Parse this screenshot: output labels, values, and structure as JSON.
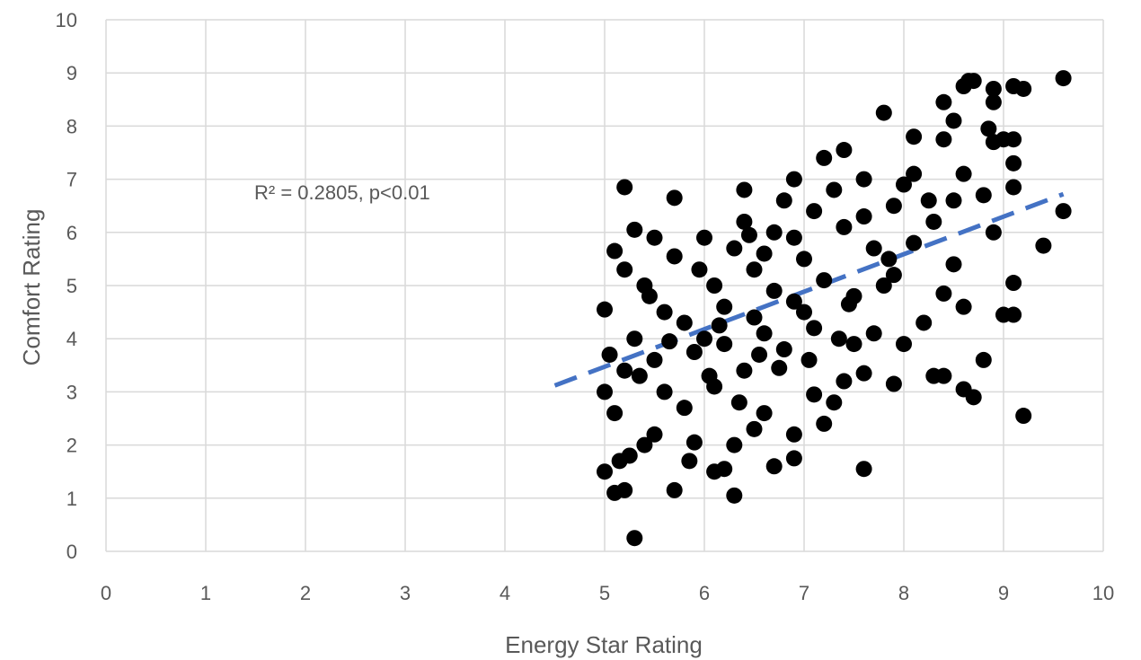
{
  "chart_data": {
    "type": "scatter",
    "xlabel": "Energy Star Rating",
    "ylabel": "Comfort Rating",
    "xlim": [
      0,
      10
    ],
    "ylim": [
      0,
      10
    ],
    "xticks": [
      "0",
      "1",
      "2",
      "3",
      "4",
      "5",
      "6",
      "7",
      "8",
      "9",
      "10"
    ],
    "yticks": [
      "0",
      "1",
      "2",
      "3",
      "4",
      "5",
      "6",
      "7",
      "8",
      "9",
      "10"
    ],
    "grid": true,
    "annotation": "R² = 0.2805, p<0.01",
    "colors": {
      "points": "#000000",
      "trendline": "#4472C4",
      "grid": "#d9d9d9",
      "text": "#595959"
    },
    "trendline": {
      "style": "dashed",
      "x": [
        4.5,
        9.6
      ],
      "y": [
        3.12,
        6.72
      ]
    },
    "points": [
      {
        "x": 5.3,
        "y": 0.25
      },
      {
        "x": 6.3,
        "y": 1.05
      },
      {
        "x": 5.1,
        "y": 1.1
      },
      {
        "x": 5.2,
        "y": 1.15
      },
      {
        "x": 5.7,
        "y": 1.15
      },
      {
        "x": 5.0,
        "y": 1.5
      },
      {
        "x": 6.1,
        "y": 1.5
      },
      {
        "x": 6.2,
        "y": 1.55
      },
      {
        "x": 6.7,
        "y": 1.6
      },
      {
        "x": 7.6,
        "y": 1.55
      },
      {
        "x": 5.15,
        "y": 1.7
      },
      {
        "x": 5.25,
        "y": 1.8
      },
      {
        "x": 5.85,
        "y": 1.7
      },
      {
        "x": 6.9,
        "y": 1.75
      },
      {
        "x": 5.4,
        "y": 2.0
      },
      {
        "x": 5.9,
        "y": 2.05
      },
      {
        "x": 6.3,
        "y": 2.0
      },
      {
        "x": 6.9,
        "y": 2.2
      },
      {
        "x": 5.5,
        "y": 2.2
      },
      {
        "x": 6.5,
        "y": 2.3
      },
      {
        "x": 7.2,
        "y": 2.4
      },
      {
        "x": 9.2,
        "y": 2.55
      },
      {
        "x": 5.1,
        "y": 2.6
      },
      {
        "x": 5.8,
        "y": 2.7
      },
      {
        "x": 6.6,
        "y": 2.6
      },
      {
        "x": 7.3,
        "y": 2.8
      },
      {
        "x": 8.7,
        "y": 2.9
      },
      {
        "x": 7.1,
        "y": 2.95
      },
      {
        "x": 5.0,
        "y": 3.0
      },
      {
        "x": 5.6,
        "y": 3.0
      },
      {
        "x": 6.1,
        "y": 3.1
      },
      {
        "x": 8.6,
        "y": 3.05
      },
      {
        "x": 7.9,
        "y": 3.15
      },
      {
        "x": 7.4,
        "y": 3.2
      },
      {
        "x": 8.3,
        "y": 3.3
      },
      {
        "x": 8.4,
        "y": 3.3
      },
      {
        "x": 7.6,
        "y": 3.35
      },
      {
        "x": 5.2,
        "y": 3.4
      },
      {
        "x": 6.4,
        "y": 3.4
      },
      {
        "x": 8.8,
        "y": 3.6
      },
      {
        "x": 5.5,
        "y": 3.6
      },
      {
        "x": 5.05,
        "y": 3.7
      },
      {
        "x": 5.9,
        "y": 3.75
      },
      {
        "x": 6.8,
        "y": 3.8
      },
      {
        "x": 7.5,
        "y": 3.9
      },
      {
        "x": 8.0,
        "y": 3.9
      },
      {
        "x": 5.3,
        "y": 4.0
      },
      {
        "x": 6.0,
        "y": 4.0
      },
      {
        "x": 6.6,
        "y": 4.1
      },
      {
        "x": 7.1,
        "y": 4.2
      },
      {
        "x": 7.7,
        "y": 4.1
      },
      {
        "x": 8.2,
        "y": 4.3
      },
      {
        "x": 9.0,
        "y": 4.45
      },
      {
        "x": 9.1,
        "y": 4.45
      },
      {
        "x": 5.0,
        "y": 4.55
      },
      {
        "x": 5.6,
        "y": 4.5
      },
      {
        "x": 6.2,
        "y": 4.6
      },
      {
        "x": 8.6,
        "y": 4.6
      },
      {
        "x": 6.9,
        "y": 4.7
      },
      {
        "x": 7.5,
        "y": 4.8
      },
      {
        "x": 8.4,
        "y": 4.85
      },
      {
        "x": 5.4,
        "y": 5.0
      },
      {
        "x": 6.1,
        "y": 5.0
      },
      {
        "x": 9.1,
        "y": 5.05
      },
      {
        "x": 7.2,
        "y": 5.1
      },
      {
        "x": 7.9,
        "y": 5.2
      },
      {
        "x": 5.2,
        "y": 5.3
      },
      {
        "x": 6.5,
        "y": 5.3
      },
      {
        "x": 8.5,
        "y": 5.4
      },
      {
        "x": 7.0,
        "y": 5.5
      },
      {
        "x": 5.7,
        "y": 5.55
      },
      {
        "x": 5.1,
        "y": 5.65
      },
      {
        "x": 6.3,
        "y": 5.7
      },
      {
        "x": 7.7,
        "y": 5.7
      },
      {
        "x": 9.4,
        "y": 5.75
      },
      {
        "x": 8.1,
        "y": 5.8
      },
      {
        "x": 5.5,
        "y": 5.9
      },
      {
        "x": 6.0,
        "y": 5.9
      },
      {
        "x": 6.7,
        "y": 6.0
      },
      {
        "x": 8.9,
        "y": 6.0
      },
      {
        "x": 5.3,
        "y": 6.05
      },
      {
        "x": 7.4,
        "y": 6.1
      },
      {
        "x": 8.3,
        "y": 6.2
      },
      {
        "x": 6.4,
        "y": 6.2
      },
      {
        "x": 9.6,
        "y": 6.4
      },
      {
        "x": 7.1,
        "y": 6.4
      },
      {
        "x": 7.9,
        "y": 6.5
      },
      {
        "x": 6.8,
        "y": 6.6
      },
      {
        "x": 8.5,
        "y": 6.6
      },
      {
        "x": 5.7,
        "y": 6.65
      },
      {
        "x": 8.8,
        "y": 6.7
      },
      {
        "x": 6.4,
        "y": 6.8
      },
      {
        "x": 7.3,
        "y": 6.8
      },
      {
        "x": 5.2,
        "y": 6.85
      },
      {
        "x": 9.1,
        "y": 6.85
      },
      {
        "x": 8.0,
        "y": 6.9
      },
      {
        "x": 6.9,
        "y": 7.0
      },
      {
        "x": 7.6,
        "y": 7.0
      },
      {
        "x": 8.6,
        "y": 7.1
      },
      {
        "x": 8.1,
        "y": 7.1
      },
      {
        "x": 9.1,
        "y": 7.3
      },
      {
        "x": 7.2,
        "y": 7.4
      },
      {
        "x": 7.4,
        "y": 7.55
      },
      {
        "x": 8.9,
        "y": 7.7
      },
      {
        "x": 8.4,
        "y": 7.75
      },
      {
        "x": 9.1,
        "y": 7.75
      },
      {
        "x": 8.1,
        "y": 7.8
      },
      {
        "x": 9.0,
        "y": 7.75
      },
      {
        "x": 8.85,
        "y": 7.95
      },
      {
        "x": 8.5,
        "y": 8.1
      },
      {
        "x": 7.8,
        "y": 8.25
      },
      {
        "x": 8.4,
        "y": 8.45
      },
      {
        "x": 8.9,
        "y": 8.45
      },
      {
        "x": 8.9,
        "y": 8.7
      },
      {
        "x": 8.6,
        "y": 8.75
      },
      {
        "x": 9.1,
        "y": 8.75
      },
      {
        "x": 9.2,
        "y": 8.7
      },
      {
        "x": 8.65,
        "y": 8.85
      },
      {
        "x": 8.7,
        "y": 8.85
      },
      {
        "x": 9.6,
        "y": 8.9
      },
      {
        "x": 6.5,
        "y": 4.4
      },
      {
        "x": 6.7,
        "y": 4.9
      },
      {
        "x": 7.0,
        "y": 4.5
      },
      {
        "x": 6.2,
        "y": 3.9
      },
      {
        "x": 5.8,
        "y": 4.3
      },
      {
        "x": 6.9,
        "y": 5.9
      },
      {
        "x": 7.6,
        "y": 6.3
      },
      {
        "x": 7.8,
        "y": 5.0
      },
      {
        "x": 6.05,
        "y": 3.3
      },
      {
        "x": 6.35,
        "y": 2.8
      },
      {
        "x": 5.45,
        "y": 4.8
      },
      {
        "x": 7.35,
        "y": 4.0
      },
      {
        "x": 6.6,
        "y": 5.6
      },
      {
        "x": 7.05,
        "y": 3.6
      },
      {
        "x": 5.95,
        "y": 5.3
      },
      {
        "x": 6.15,
        "y": 4.25
      },
      {
        "x": 8.25,
        "y": 6.6
      },
      {
        "x": 7.85,
        "y": 5.5
      },
      {
        "x": 6.45,
        "y": 5.95
      },
      {
        "x": 5.35,
        "y": 3.3
      },
      {
        "x": 6.75,
        "y": 3.45
      },
      {
        "x": 7.45,
        "y": 4.65
      },
      {
        "x": 6.55,
        "y": 3.7
      },
      {
        "x": 5.65,
        "y": 3.95
      }
    ]
  }
}
